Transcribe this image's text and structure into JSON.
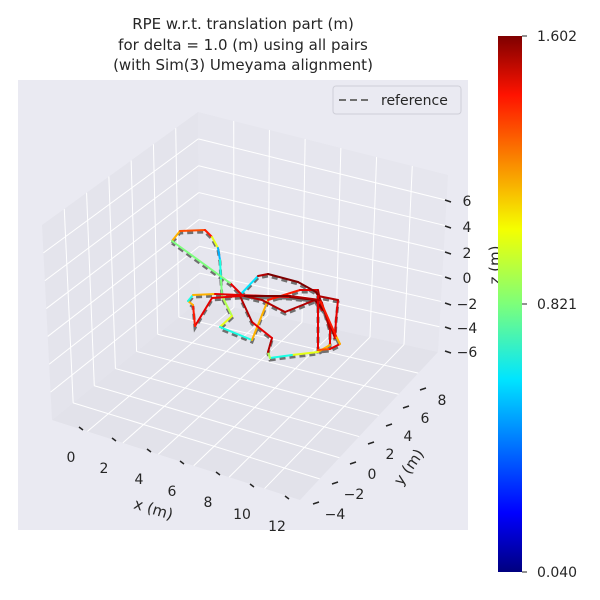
{
  "chart_data": {
    "type": "line",
    "projection": "3d",
    "title": [
      "RPE w.r.t. translation part (m)",
      "for delta = 1.0 (m) using all pairs",
      "(with Sim(3) Umeyama alignment)"
    ],
    "xlabel": "x (m)",
    "ylabel": "y (m)",
    "zlabel": "z (m)",
    "x_ticks": [
      "0",
      "2",
      "4",
      "6",
      "8",
      "10",
      "12"
    ],
    "y_ticks": [
      "−4",
      "−2",
      "0",
      "2",
      "4",
      "6",
      "8"
    ],
    "z_ticks": [
      "6",
      "4",
      "2",
      "0",
      "−2",
      "−4",
      "−6"
    ],
    "legend": {
      "entries": [
        {
          "label": "reference",
          "style": "dashed",
          "color": "#707070"
        }
      ],
      "placement": "top-right"
    },
    "colorbar": {
      "colormap": "jet",
      "min": 0.04,
      "max": 1.602,
      "ticks": [
        "1.602",
        "0.821",
        "0.040"
      ]
    },
    "grid": true,
    "background": "#eaeaf2"
  }
}
